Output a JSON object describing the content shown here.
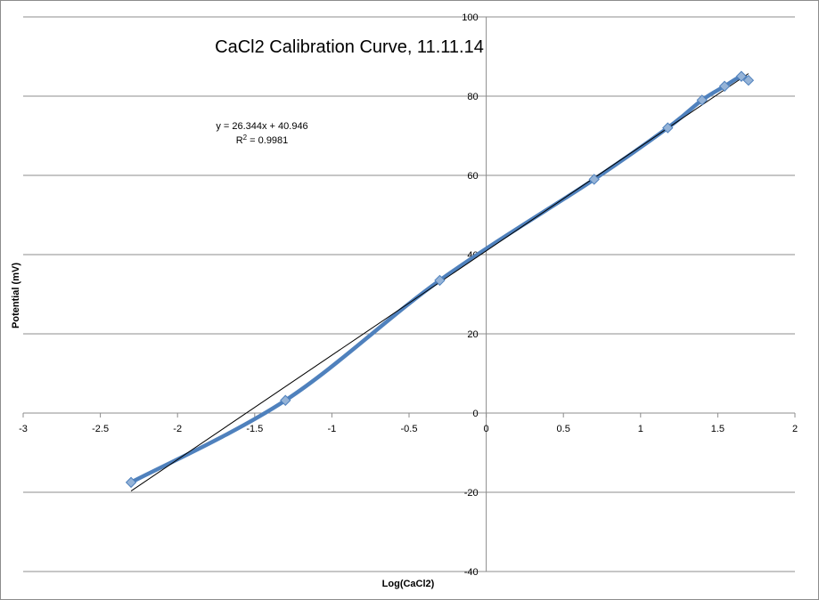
{
  "chart_data": {
    "type": "scatter",
    "title": "CaCl2 Calibration Curve, 11.11.14",
    "xlabel": "Log(CaCl2)",
    "ylabel": "Potential (mV)",
    "xlim": [
      -3,
      2
    ],
    "ylim": [
      -40,
      100
    ],
    "x_ticks": [
      -3,
      -2.5,
      -2,
      -1.5,
      -1,
      -0.5,
      0,
      0.5,
      1,
      1.5,
      2
    ],
    "y_ticks": [
      -40,
      -20,
      0,
      20,
      40,
      60,
      80,
      100
    ],
    "x_tick_labels": [
      "-3",
      "-2.5",
      "-2",
      "-1.5",
      "-1",
      "-0.5",
      "0",
      "0.5",
      "1",
      "1.5",
      "2"
    ],
    "y_tick_labels": [
      "-40",
      "-20",
      "0",
      "20",
      "40",
      "60",
      "80",
      "100"
    ],
    "grid": "horizontal major gridlines",
    "legend": "none",
    "series": [
      {
        "marker": "diamond",
        "line": "smoothed",
        "color": "#4F81BD",
        "x": [
          -2.301,
          -1.301,
          -0.301,
          0.699,
          1.176,
          1.398,
          1.544,
          1.653,
          1.699
        ],
        "y": [
          -17.5,
          3.2,
          33.5,
          59,
          72,
          79,
          82.5,
          85,
          84
        ]
      }
    ],
    "trendline": {
      "type": "linear",
      "slope": 26.344,
      "intercept": 40.946,
      "x_range": [
        -2.301,
        1.699
      ],
      "color": "#000000"
    },
    "annotations": {
      "equation": "y = 26.344x + 40.946",
      "r2_prefix": "R",
      "r2_sup": "2",
      "r2_value": " = 0.9981"
    }
  }
}
